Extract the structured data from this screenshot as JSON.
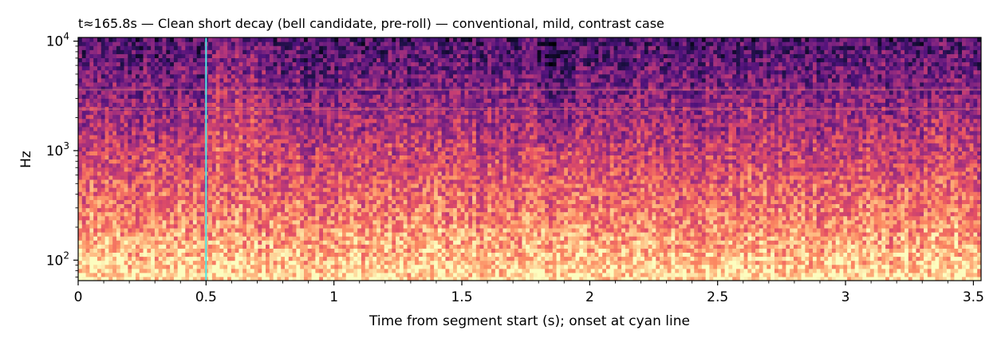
{
  "chart_data": {
    "type": "heatmap",
    "title": "t≈165.8s — Clean short decay (bell candidate, pre-roll) — conventional, mild, contrast case",
    "xlabel": "Time from segment start (s); onset at cyan line",
    "ylabel": "Hz",
    "x_scale": "linear",
    "y_scale": "log",
    "xlim": [
      0,
      3.53
    ],
    "ylim": [
      65,
      10800
    ],
    "x_ticks": [
      {
        "value": 0,
        "label": "0"
      },
      {
        "value": 0.5,
        "label": "0.5"
      },
      {
        "value": 1,
        "label": "1"
      },
      {
        "value": 1.5,
        "label": "1.5"
      },
      {
        "value": 2,
        "label": "2"
      },
      {
        "value": 2.5,
        "label": "2.5"
      },
      {
        "value": 3,
        "label": "3"
      },
      {
        "value": 3.5,
        "label": "3.5"
      }
    ],
    "y_ticks": [
      {
        "value": 100,
        "base": "10",
        "exp": "2"
      },
      {
        "value": 1000,
        "base": "10",
        "exp": "3"
      },
      {
        "value": 10000,
        "base": "10",
        "exp": "4"
      }
    ],
    "colormap": "magma",
    "onset_marker": {
      "x": 0.5,
      "color": "#4de8e6"
    },
    "grid": false,
    "legend": "none"
  }
}
